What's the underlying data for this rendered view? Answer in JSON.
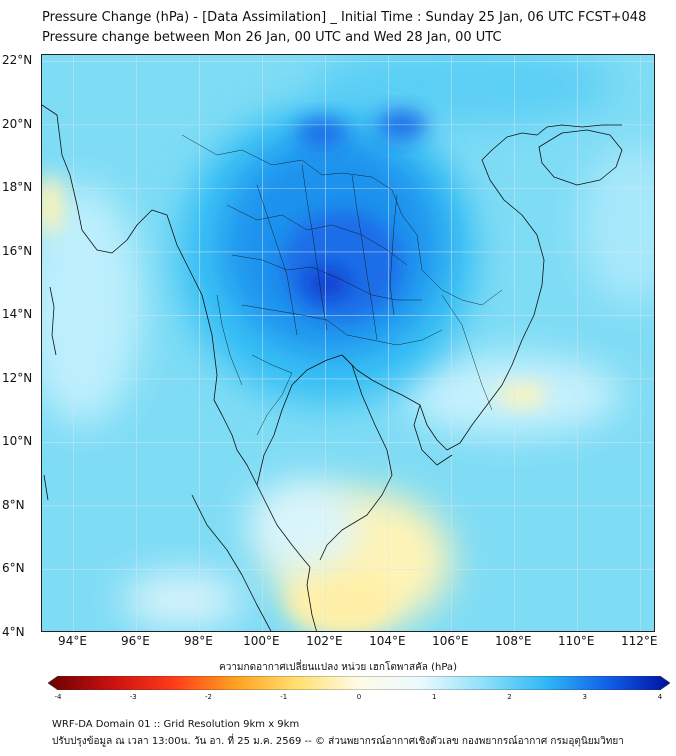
{
  "title_line1": "Pressure Change (hPa) - [Data Assimilation] _ Initial Time : Sunday 25 Jan, 06 UTC FCST+048",
  "title_line2": "Pressure change between Mon 26 Jan, 00 UTC and Wed 28 Jan, 00 UTC",
  "map": {
    "lon_range": [
      93,
      112.5
    ],
    "lat_range": [
      4,
      22.2
    ],
    "x_ticks": [
      "94°E",
      "96°E",
      "98°E",
      "100°E",
      "102°E",
      "104°E",
      "106°E",
      "108°E",
      "110°E",
      "112°E"
    ],
    "x_tick_values": [
      94,
      96,
      98,
      100,
      102,
      104,
      106,
      108,
      110,
      112
    ],
    "y_ticks": [
      "22°N",
      "20°N",
      "18°N",
      "16°N",
      "14°N",
      "12°N",
      "10°N",
      "8°N",
      "6°N",
      "4°N"
    ],
    "y_tick_values": [
      22,
      20,
      18,
      16,
      14,
      12,
      10,
      8,
      6,
      4
    ],
    "gridlines": true,
    "field_colors": {
      "strong_negative": "#8b0000",
      "background": "#7fdcf5",
      "light": "#bdeffd",
      "positive_small": "#fff4b8",
      "mid": "#38c0f5",
      "strong": "#1a6de8",
      "strongest": "#0a3fd0"
    }
  },
  "colorbar": {
    "caption": "ความกดอากาศเปลี่ยนแปลง หน่วย เฮกโตพาสคัล (hPa)",
    "min": -4,
    "max": 4,
    "ticks": [
      "-4",
      "-3",
      "-2",
      "-1",
      "0",
      "1",
      "2",
      "3",
      "4"
    ],
    "tick_values": [
      -4,
      -3,
      -2,
      -1,
      0,
      1,
      2,
      3,
      4
    ],
    "stops": [
      "#6b0000",
      "#c81010",
      "#ff3a1a",
      "#ffa020",
      "#ffe070",
      "#fffbe6",
      "#eaf9ff",
      "#8fe0fa",
      "#30b8f5",
      "#1060e8",
      "#0010a0"
    ]
  },
  "footer_line1": "WRF-DA Domain 01 :: Grid Resolution 9km x 9km",
  "footer_line2": "ปรับปรุงข้อมูล ณ เวลา 13:00น. วัน อา. ที่ 25 ม.ค. 2569 -- © ส่วนพยากรณ์อากาศเชิงตัวเลข กองพยากรณ์อากาศ กรมอุตุนิยมวิทยา"
}
